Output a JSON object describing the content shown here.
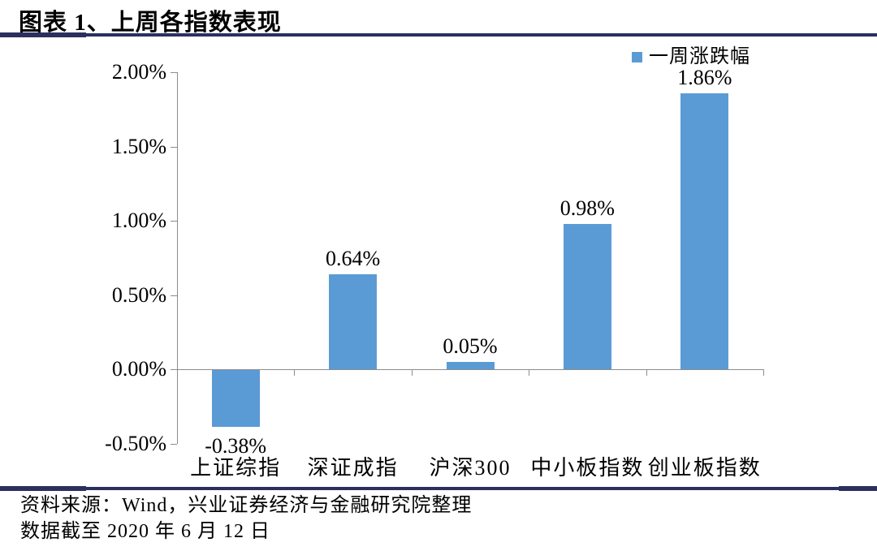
{
  "header": {
    "title": "图表 1、上周各指数表现"
  },
  "legend": {
    "label": "一周涨跌幅",
    "swatch_color": "#5b9bd5"
  },
  "chart_data": {
    "type": "bar",
    "title": "图表 1、上周各指数表现",
    "categories": [
      "上证综指",
      "深证成指",
      "沪深300",
      "中小板指数",
      "创业板指数"
    ],
    "values": [
      -0.38,
      0.64,
      0.05,
      0.98,
      1.86
    ],
    "value_labels": [
      "-0.38%",
      "0.64%",
      "0.05%",
      "0.98%",
      "1.86%"
    ],
    "series_name": "一周涨跌幅",
    "y_tick_labels": [
      "2.00%",
      "1.50%",
      "1.00%",
      "0.50%",
      "0.00%",
      "-0.50%"
    ],
    "y_tick_values": [
      2.0,
      1.5,
      1.0,
      0.5,
      0.0,
      -0.5
    ],
    "ylim": [
      -0.5,
      2.0
    ],
    "unit": "%",
    "grid": false,
    "legend_position": "top-right",
    "bar_color": "#5b9bd5",
    "axis_color": "#8c8c8c"
  },
  "footer": {
    "source_line": "资料来源：Wind，兴业证券经济与金融研究院整理",
    "date_line": "数据截至 2020 年 6 月 12 日"
  },
  "accent_colors": {
    "rule_navy": "#2c2f5e",
    "bar_blue": "#5b9bd5",
    "axis_gray": "#8c8c8c"
  }
}
